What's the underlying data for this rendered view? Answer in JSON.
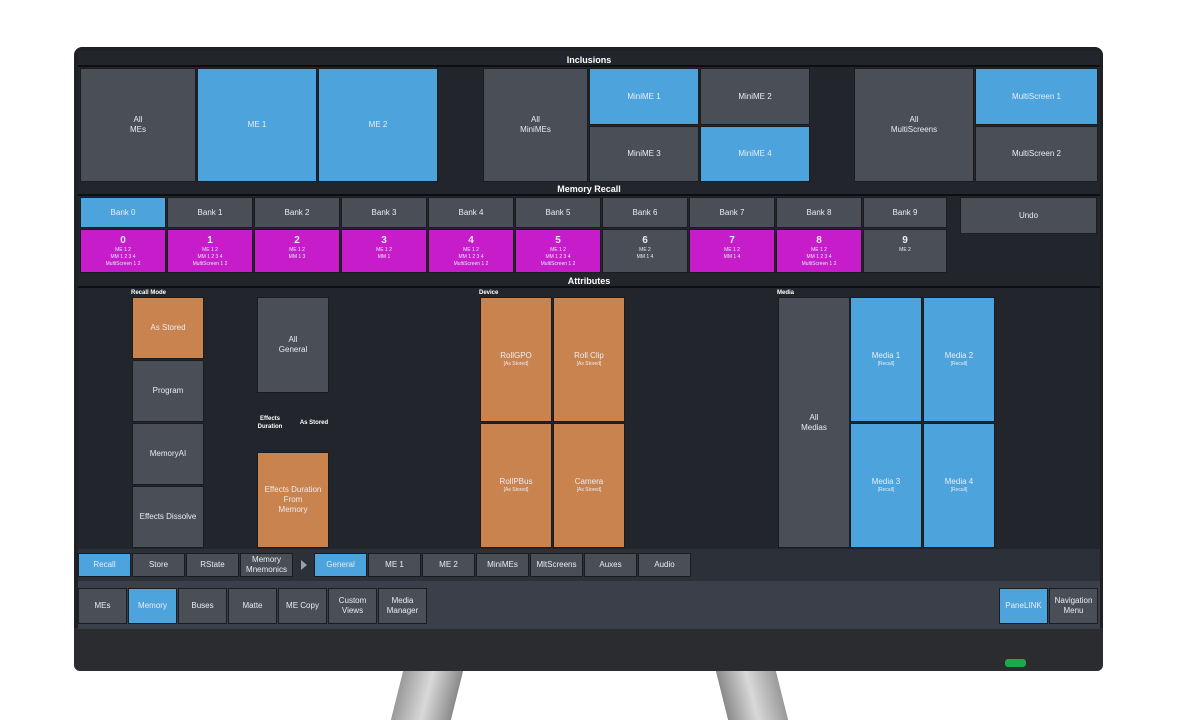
{
  "inclusions": {
    "title": "Inclusions",
    "me_group": {
      "all": "All\nMEs",
      "items": [
        "ME 1",
        "ME 2"
      ]
    },
    "minime_group": {
      "all": "All\nMiniMEs",
      "items": [
        "MiniME 1",
        "MiniME 2",
        "MiniME 3",
        "MiniME 4"
      ]
    },
    "multiscreen_group": {
      "all": "All\nMultiScreens",
      "items": [
        "MultiScreen 1",
        "MultiScreen 2"
      ]
    }
  },
  "memory_recall": {
    "title": "Memory Recall",
    "banks": [
      "Bank 0",
      "Bank 1",
      "Bank 2",
      "Bank 3",
      "Bank 4",
      "Bank 5",
      "Bank 6",
      "Bank 7",
      "Bank 8",
      "Bank 9"
    ],
    "undo_label": "Undo",
    "memories": [
      {
        "num": "0",
        "details": "ME 1 2\nMM 1 2 3 4\nMultiScreen 1 2"
      },
      {
        "num": "1",
        "details": "ME 1 2\nMM 1 2 3 4\nMultiScreen 1 2"
      },
      {
        "num": "2",
        "details": "ME 1 2\nMM 1 3"
      },
      {
        "num": "3",
        "details": "ME 1 2\nMM 1"
      },
      {
        "num": "4",
        "details": "ME 1 2\nMM 1 2 3 4\nMultiScreen 1 2"
      },
      {
        "num": "5",
        "details": "ME 1 2\nMM 1 2 3 4\nMultiScreen 1 2"
      },
      {
        "num": "6",
        "details": "ME 2\nMM 1 4"
      },
      {
        "num": "7",
        "details": "ME 1 2\nMM 1 4"
      },
      {
        "num": "8",
        "details": "ME 1 2\nMM 1 2 3 4\nMultiScreen 1 2"
      },
      {
        "num": "9",
        "details": "ME 2"
      }
    ]
  },
  "attributes": {
    "title": "Attributes",
    "recall_mode": {
      "label": "Recall Mode",
      "options": [
        "As Stored",
        "Program",
        "MemoryAI",
        "Effects Dissolve"
      ]
    },
    "all_general": "All\nGeneral",
    "effects_duration_label": "Effects\nDuration",
    "effects_duration_value": "As Stored",
    "effects_duration_from_memory": "Effects Duration\nFrom\nMemory",
    "device": {
      "label": "Device",
      "items": [
        {
          "name": "RollGPO",
          "sub": "[As Stored]"
        },
        {
          "name": "Roll Clip",
          "sub": "[As Stored]"
        },
        {
          "name": "RollPBus",
          "sub": "[As Stored]"
        },
        {
          "name": "Camera",
          "sub": "[As Stored]"
        }
      ]
    },
    "media": {
      "label": "Media",
      "all": "All\nMedias",
      "items": [
        {
          "name": "Media 1",
          "sub": "[Recall]"
        },
        {
          "name": "Media 2",
          "sub": "[Recall]"
        },
        {
          "name": "Media 3",
          "sub": "[Recall]"
        },
        {
          "name": "Media 4",
          "sub": "[Recall]"
        }
      ]
    }
  },
  "tabs": {
    "modes": [
      "Recall",
      "Store",
      "RState",
      "Memory\nMnemonics"
    ],
    "categories": [
      "General",
      "ME 1",
      "ME 2",
      "MiniMEs",
      "MltScreens",
      "Auxes",
      "Audio"
    ]
  },
  "nav": {
    "items": [
      "MEs",
      "Memory",
      "Buses",
      "Matte",
      "ME Copy",
      "Custom\nViews",
      "Media\nManager"
    ],
    "panelink": "PaneLINK",
    "navigation_menu": "Navigation\nMenu"
  },
  "colors": {
    "active_blue": "#4da3dc",
    "inactive_gray": "#4a4e57",
    "memory_magenta": "#c61cc9",
    "attribute_orange": "#c9834f",
    "power_led_green": "#1fa84a"
  }
}
